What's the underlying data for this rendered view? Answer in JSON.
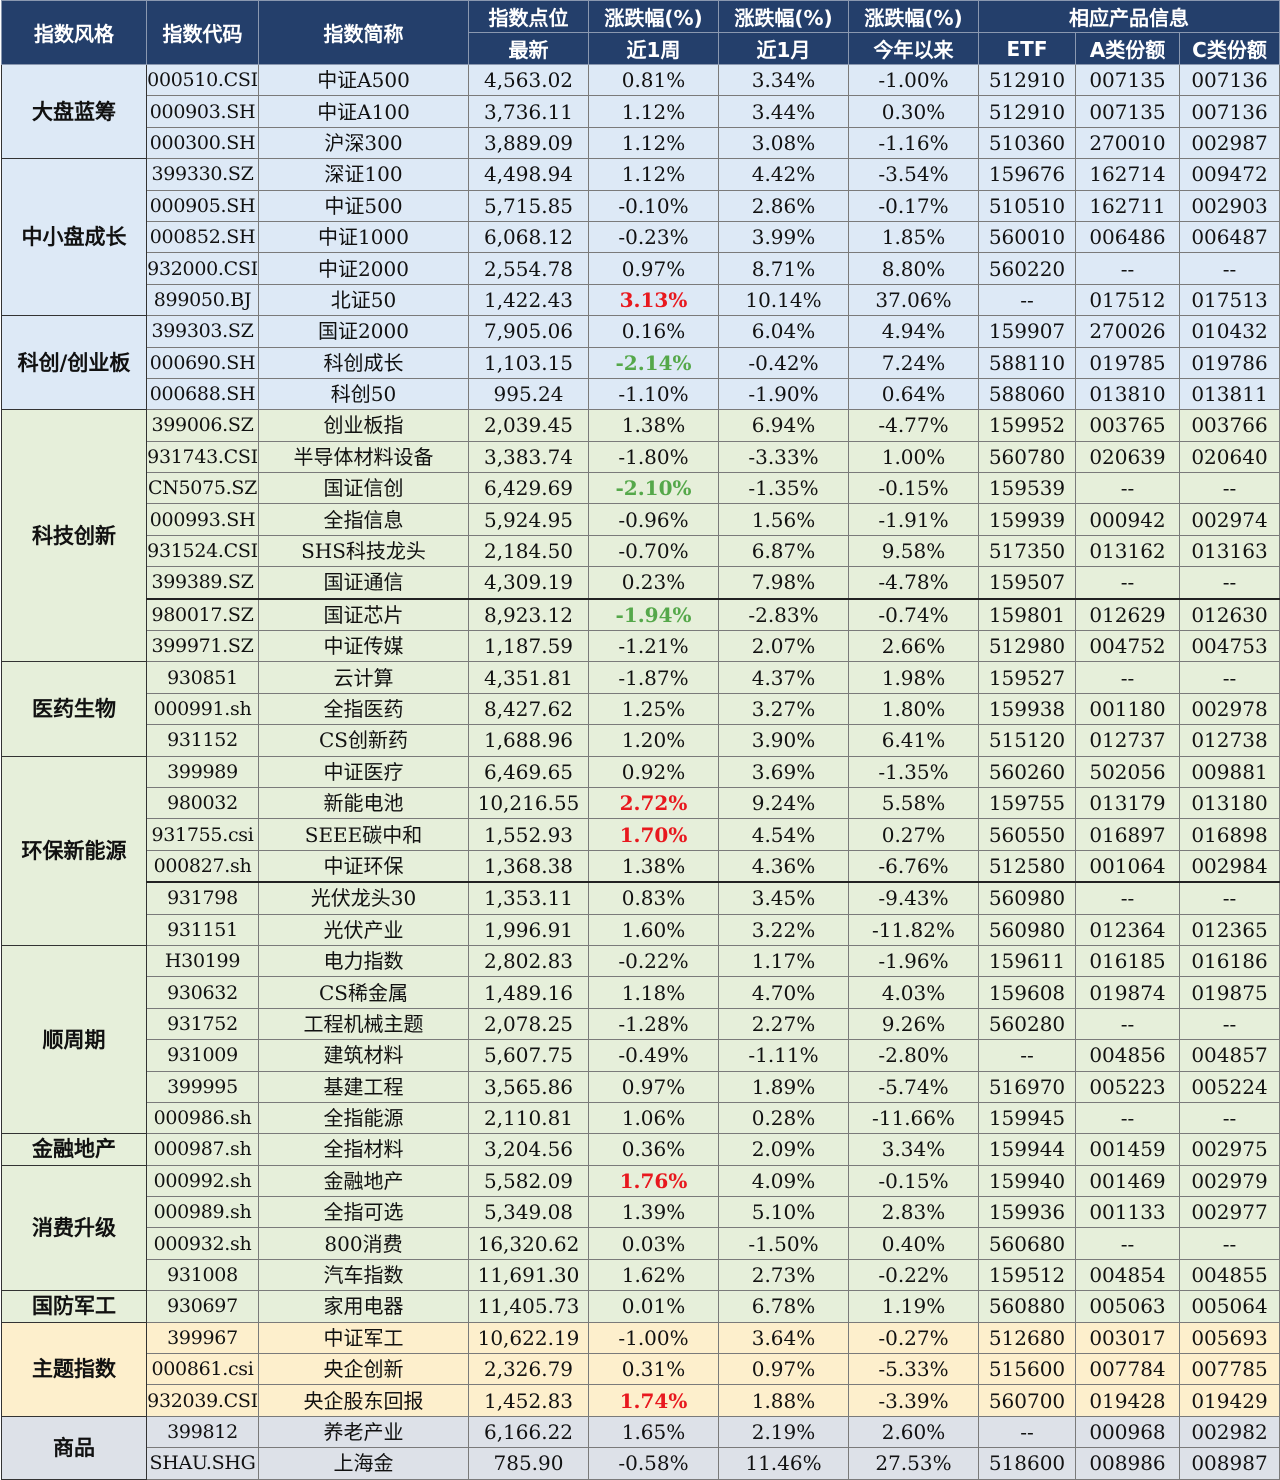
{
  "header": {
    "row1": [
      "指数风格",
      "指数代码",
      "指数简称",
      "指数点位",
      "涨跌幅(%)",
      "涨跌幅(%)",
      "涨跌幅(%)",
      "相应产品信息"
    ],
    "row2": [
      "最新",
      "近1周",
      "近1月",
      "今年以来",
      "ETF",
      "A类份额",
      "C类份额"
    ]
  },
  "colors": {
    "header_bg": "#243f6b",
    "blue": "#dde9f6",
    "green": "#e6efda",
    "yellow": "#fdefcc",
    "gray": "#dde1e8",
    "up_red": "#e8181e",
    "down_green": "#55a84a"
  },
  "rows": [
    {
      "cat": "大盘蓝筹",
      "span": 3,
      "code": "000510.CSI",
      "name": "中证A500",
      "last": "4,563.02",
      "w1": "0.81%",
      "m1": "3.34%",
      "ytd": "-1.00%",
      "etf": "512910",
      "a": "007135",
      "c": "007136"
    },
    {
      "code": "000903.SH",
      "name": "中证A100",
      "last": "3,736.11",
      "w1": "1.12%",
      "m1": "3.44%",
      "ytd": "0.30%",
      "etf": "512910",
      "a": "007135",
      "c": "007136"
    },
    {
      "code": "000300.SH",
      "name": "沪深300",
      "last": "3,889.09",
      "w1": "1.12%",
      "m1": "3.08%",
      "ytd": "-1.16%",
      "etf": "510360",
      "a": "270010",
      "c": "002987"
    },
    {
      "cat": "中小盘成长",
      "span": 5,
      "code": "399330.SZ",
      "name": "深证100",
      "last": "4,498.94",
      "w1": "1.12%",
      "m1": "4.42%",
      "ytd": "-3.54%",
      "etf": "159676",
      "a": "162714",
      "c": "009472"
    },
    {
      "code": "000905.SH",
      "name": "中证500",
      "last": "5,715.85",
      "w1": "-0.10%",
      "m1": "2.86%",
      "ytd": "-0.17%",
      "etf": "510510",
      "a": "162711",
      "c": "002903"
    },
    {
      "code": "000852.SH",
      "name": "中证1000",
      "last": "6,068.12",
      "w1": "-0.23%",
      "m1": "3.99%",
      "ytd": "1.85%",
      "etf": "560010",
      "a": "006486",
      "c": "006487"
    },
    {
      "code": "932000.CSI",
      "name": "中证2000",
      "last": "2,554.78",
      "w1": "0.97%",
      "m1": "8.71%",
      "ytd": "8.80%",
      "etf": "560220",
      "a": "--",
      "c": "--"
    },
    {
      "code": "899050.BJ",
      "name": "北证50",
      "last": "1,422.43",
      "w1": "3.13%",
      "w1c": "red",
      "m1": "10.14%",
      "ytd": "37.06%",
      "etf": "--",
      "a": "017512",
      "c": "017513"
    },
    {
      "cat": "科创/创业板",
      "span": 3,
      "code": "399303.SZ",
      "name": "国证2000",
      "last": "7,905.06",
      "w1": "0.16%",
      "m1": "6.04%",
      "ytd": "4.94%",
      "etf": "159907",
      "a": "270026",
      "c": "010432"
    },
    {
      "code": "000690.SH",
      "name": "科创成长",
      "last": "1,103.15",
      "w1": "-2.14%",
      "w1c": "green",
      "m1": "-0.42%",
      "ytd": "7.24%",
      "etf": "588110",
      "a": "019785",
      "c": "019786"
    },
    {
      "code": "000688.SH",
      "name": "科创50",
      "last": "995.24",
      "w1": "-1.10%",
      "m1": "-1.90%",
      "ytd": "0.64%",
      "etf": "588060",
      "a": "013810",
      "c": "013811"
    },
    {
      "cat": "科技创新",
      "span": 8,
      "code": "399006.SZ",
      "name": "创业板指",
      "last": "2,039.45",
      "w1": "1.38%",
      "m1": "6.94%",
      "ytd": "-4.77%",
      "etf": "159952",
      "a": "003765",
      "c": "003766"
    },
    {
      "code": "931743.CSI",
      "name": "半导体材料设备",
      "last": "3,383.74",
      "w1": "-1.80%",
      "m1": "-3.33%",
      "ytd": "1.00%",
      "etf": "560780",
      "a": "020639",
      "c": "020640"
    },
    {
      "code": "CN5075.SZ",
      "name": "国证信创",
      "last": "6,429.69",
      "w1": "-2.10%",
      "w1c": "green",
      "m1": "-1.35%",
      "ytd": "-0.15%",
      "etf": "159539",
      "a": "--",
      "c": "--"
    },
    {
      "code": "000993.SH",
      "name": "全指信息",
      "last": "5,924.95",
      "w1": "-0.96%",
      "m1": "1.56%",
      "ytd": "-1.91%",
      "etf": "159939",
      "a": "000942",
      "c": "002974"
    },
    {
      "code": "931524.CSI",
      "name": "SHS科技龙头",
      "last": "2,184.50",
      "w1": "-0.70%",
      "m1": "6.87%",
      "ytd": "9.58%",
      "etf": "517350",
      "a": "013162",
      "c": "013163"
    },
    {
      "code": "399389.SZ",
      "name": "国证通信",
      "last": "4,309.19",
      "w1": "0.23%",
      "m1": "7.98%",
      "ytd": "-4.78%",
      "etf": "159507",
      "a": "--",
      "c": "--"
    },
    {
      "code": "980017.SZ",
      "name": "国证芯片",
      "last": "8,923.12",
      "w1": "-1.94%",
      "w1c": "green",
      "m1": "-2.83%",
      "ytd": "-0.74%",
      "etf": "159801",
      "a": "012629",
      "c": "012630",
      "brk": true
    },
    {
      "code": "399971.SZ",
      "name": "中证传媒",
      "last": "1,187.59",
      "w1": "-1.21%",
      "m1": "2.07%",
      "ytd": "2.66%",
      "etf": "512980",
      "a": "004752",
      "c": "004753"
    },
    {
      "cat": "医药生物",
      "span": 3,
      "code": "930851",
      "name": "云计算",
      "last": "4,351.81",
      "w1": "-1.87%",
      "m1": "4.37%",
      "ytd": "1.98%",
      "etf": "159527",
      "a": "--",
      "c": "--"
    },
    {
      "code": "000991.sh",
      "name": "全指医药",
      "last": "8,427.62",
      "w1": "1.25%",
      "m1": "3.27%",
      "ytd": "1.80%",
      "etf": "159938",
      "a": "001180",
      "c": "002978"
    },
    {
      "code": "931152",
      "name": "CS创新药",
      "last": "1,688.96",
      "w1": "1.20%",
      "m1": "3.90%",
      "ytd": "6.41%",
      "etf": "515120",
      "a": "012737",
      "c": "012738"
    },
    {
      "cat": "环保新能源",
      "span": 6,
      "code": "399989",
      "name": "中证医疗",
      "last": "6,469.65",
      "w1": "0.92%",
      "m1": "3.69%",
      "ytd": "-1.35%",
      "etf": "560260",
      "a": "502056",
      "c": "009881"
    },
    {
      "code": "980032",
      "name": "新能电池",
      "last": "10,216.55",
      "w1": "2.72%",
      "w1c": "red",
      "m1": "9.24%",
      "ytd": "5.58%",
      "etf": "159755",
      "a": "013179",
      "c": "013180"
    },
    {
      "code": "931755.csi",
      "name": "SEEE碳中和",
      "last": "1,552.93",
      "w1": "1.70%",
      "w1c": "red",
      "m1": "4.54%",
      "ytd": "0.27%",
      "etf": "560550",
      "a": "016897",
      "c": "016898"
    },
    {
      "code": "000827.sh",
      "name": "中证环保",
      "last": "1,368.38",
      "w1": "1.38%",
      "m1": "4.36%",
      "ytd": "-6.76%",
      "etf": "512580",
      "a": "001064",
      "c": "002984"
    },
    {
      "code": "931798",
      "name": "光伏龙头30",
      "last": "1,353.11",
      "w1": "0.83%",
      "m1": "3.45%",
      "ytd": "-9.43%",
      "etf": "560980",
      "a": "--",
      "c": "--",
      "brk": true
    },
    {
      "code": "931151",
      "name": "光伏产业",
      "last": "1,996.91",
      "w1": "1.60%",
      "m1": "3.22%",
      "ytd": "-11.82%",
      "etf": "560980",
      "a": "012364",
      "c": "012365"
    },
    {
      "cat": "顺周期",
      "span": 6,
      "code": "H30199",
      "name": "电力指数",
      "last": "2,802.83",
      "w1": "-0.22%",
      "m1": "1.17%",
      "ytd": "-1.96%",
      "etf": "159611",
      "a": "016185",
      "c": "016186"
    },
    {
      "code": "930632",
      "name": "CS稀金属",
      "last": "1,489.16",
      "w1": "1.18%",
      "m1": "4.70%",
      "ytd": "4.03%",
      "etf": "159608",
      "a": "019874",
      "c": "019875"
    },
    {
      "code": "931752",
      "name": "工程机械主题",
      "last": "2,078.25",
      "w1": "-1.28%",
      "m1": "2.27%",
      "ytd": "9.26%",
      "etf": "560280",
      "a": "--",
      "c": "--"
    },
    {
      "code": "931009",
      "name": "建筑材料",
      "last": "5,607.75",
      "w1": "-0.49%",
      "m1": "-1.11%",
      "ytd": "-2.80%",
      "etf": "--",
      "a": "004856",
      "c": "004857"
    },
    {
      "code": "399995",
      "name": "基建工程",
      "last": "3,565.86",
      "w1": "0.97%",
      "m1": "1.89%",
      "ytd": "-5.74%",
      "etf": "516970",
      "a": "005223",
      "c": "005224"
    },
    {
      "code": "000986.sh",
      "name": "全指能源",
      "last": "2,110.81",
      "w1": "1.06%",
      "m1": "0.28%",
      "ytd": "-11.66%",
      "etf": "159945",
      "a": "--",
      "c": "--"
    },
    {
      "cat": "金融地产",
      "span": 1,
      "code": "000987.sh",
      "name": "全指材料",
      "last": "3,204.56",
      "w1": "0.36%",
      "m1": "2.09%",
      "ytd": "3.34%",
      "etf": "159944",
      "a": "001459",
      "c": "002975"
    },
    {
      "cat": "消费升级",
      "span": 4,
      "code": "000992.sh",
      "name": "金融地产",
      "last": "5,582.09",
      "w1": "1.76%",
      "w1c": "red",
      "m1": "4.09%",
      "ytd": "-0.15%",
      "etf": "159940",
      "a": "001469",
      "c": "002979"
    },
    {
      "code": "000989.sh",
      "name": "全指可选",
      "last": "5,349.08",
      "w1": "1.39%",
      "m1": "5.10%",
      "ytd": "2.83%",
      "etf": "159936",
      "a": "001133",
      "c": "002977"
    },
    {
      "code": "000932.sh",
      "name": "800消费",
      "last": "16,320.62",
      "w1": "0.03%",
      "m1": "-1.50%",
      "ytd": "0.40%",
      "etf": "560680",
      "a": "--",
      "c": "--"
    },
    {
      "code": "931008",
      "name": "汽车指数",
      "last": "11,691.30",
      "w1": "1.62%",
      "m1": "2.73%",
      "ytd": "-0.22%",
      "etf": "159512",
      "a": "004854",
      "c": "004855"
    },
    {
      "cat": "国防军工",
      "span": 1,
      "code": "930697",
      "name": "家用电器",
      "last": "11,405.73",
      "w1": "0.01%",
      "m1": "6.78%",
      "ytd": "1.19%",
      "etf": "560880",
      "a": "005063",
      "c": "005064"
    },
    {
      "cat": "主题指数",
      "span": 3,
      "code": "399967",
      "name": "中证军工",
      "last": "10,622.19",
      "w1": "-1.00%",
      "m1": "3.64%",
      "ytd": "-0.27%",
      "etf": "512680",
      "a": "003017",
      "c": "005693"
    },
    {
      "code": "000861.csi",
      "name": "央企创新",
      "last": "2,326.79",
      "w1": "0.31%",
      "m1": "0.97%",
      "ytd": "-5.33%",
      "etf": "515600",
      "a": "007784",
      "c": "007785"
    },
    {
      "code": "932039.CSI",
      "name": "央企股东回报",
      "last": "1,452.83",
      "w1": "1.74%",
      "w1c": "red",
      "m1": "1.88%",
      "ytd": "-3.39%",
      "etf": "560700",
      "a": "019428",
      "c": "019429"
    },
    {
      "cat": "商品",
      "span": 2,
      "code": "399812",
      "name": "养老产业",
      "last": "6,166.22",
      "w1": "1.65%",
      "m1": "2.19%",
      "ytd": "2.60%",
      "etf": "--",
      "a": "000968",
      "c": "002982"
    },
    {
      "code": "SHAU.SHG",
      "name": "上海金",
      "last": "785.90",
      "w1": "-0.58%",
      "m1": "11.46%",
      "ytd": "27.53%",
      "etf": "518600",
      "a": "008986",
      "c": "008987"
    }
  ]
}
